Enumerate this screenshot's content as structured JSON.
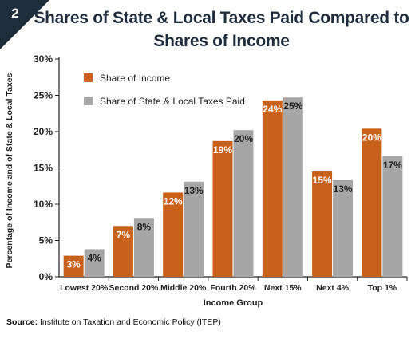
{
  "figure": {
    "number": "2",
    "title_line1": "Shares of State & Local Taxes Paid Compared to",
    "title_line2": "Shares of Income",
    "source_label": "Source:",
    "source_text": "Institute on Taxation and Economic Policy (ITEP)"
  },
  "colors": {
    "income": "#c8621a",
    "taxes": "#a6a6a6",
    "corner": "#1f2d3d",
    "axis": "#222222"
  },
  "chart_data": {
    "type": "bar",
    "title": "Shares of State & Local Taxes Paid Compared to Shares of Income",
    "xlabel": "Income Group",
    "ylabel": "Percentage of Income and of State & Local Taxes",
    "categories": [
      "Lowest 20%",
      "Second 20%",
      "Middle 20%",
      "Fourth 20%",
      "Next 15%",
      "Next 4%",
      "Top 1%"
    ],
    "series": [
      {
        "name": "Share of Income",
        "values": [
          2.9,
          7.0,
          11.6,
          18.7,
          24.3,
          14.5,
          20.4
        ],
        "labels": [
          "3%",
          "7%",
          "12%",
          "19%",
          "24%",
          "15%",
          "20%"
        ]
      },
      {
        "name": "Share of State & Local Taxes Paid",
        "values": [
          3.8,
          8.1,
          13.1,
          20.2,
          24.7,
          13.3,
          16.6
        ],
        "labels": [
          "4%",
          "8%",
          "13%",
          "20%",
          "25%",
          "13%",
          "17%"
        ]
      }
    ],
    "ylim": [
      0,
      30
    ],
    "yticks": [
      "0%",
      "5%",
      "10%",
      "15%",
      "20%",
      "25%",
      "30%"
    ],
    "grid": false,
    "legend_position": "top-left"
  }
}
